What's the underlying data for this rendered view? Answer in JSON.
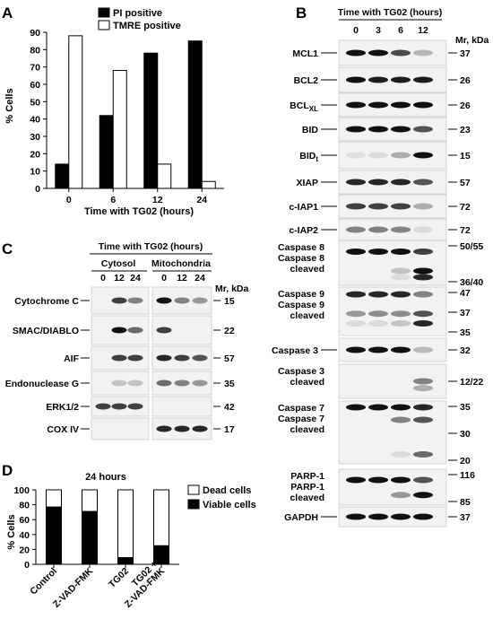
{
  "panels": {
    "A": "A",
    "B": "B",
    "C": "C",
    "D": "D"
  },
  "colors": {
    "black": "#000000",
    "white": "#ffffff",
    "blot_bg": "#f2f2f2",
    "band": "#111111"
  },
  "chart_data": [
    {
      "panel": "A",
      "type": "bar",
      "categories": [
        "0",
        "6",
        "12",
        "24"
      ],
      "series": [
        {
          "name": "PI positive",
          "values": [
            14,
            42,
            78,
            85
          ],
          "color": "#000000"
        },
        {
          "name": "TMRE positive",
          "values": [
            88,
            68,
            14,
            4
          ],
          "color": "#ffffff"
        }
      ],
      "xlabel": "Time with TG02 (hours)",
      "ylabel": "% Cells",
      "ylim": [
        0,
        90
      ],
      "yticks": [
        "0",
        "10",
        "20",
        "30",
        "40",
        "50",
        "60",
        "70",
        "80",
        "90"
      ],
      "legend": "top-left"
    },
    {
      "panel": "D",
      "type": "bar",
      "stacked": true,
      "title": "24 hours",
      "categories": [
        "Control",
        "Z-VAD-FMK",
        "TG02",
        "TG02 + Z-VAD-FMK"
      ],
      "series": [
        {
          "name": "Viable cells",
          "values": [
            77,
            71,
            9,
            25
          ],
          "color": "#000000"
        },
        {
          "name": "Dead cells",
          "values": [
            23,
            29,
            91,
            75
          ],
          "color": "#ffffff"
        }
      ],
      "ylabel": "% Cells",
      "ylim": [
        0,
        100
      ],
      "yticks": [
        "0",
        "20",
        "40",
        "60",
        "80",
        "100"
      ],
      "legend": "right"
    }
  ],
  "blot_b": {
    "header": "Time with TG02 (hours)",
    "lanes": [
      "0",
      "3",
      "6",
      "12"
    ],
    "mr_header": "Mr, kDa",
    "rows": [
      {
        "label": "MCL1",
        "mw": [
          "37"
        ]
      },
      {
        "label": "BCL2",
        "mw": [
          "26"
        ]
      },
      {
        "label": "BCL",
        "sub": "XL",
        "mw": [
          "26"
        ]
      },
      {
        "label": "BID",
        "mw": [
          "23"
        ]
      },
      {
        "label": "BID",
        "sub": "t",
        "mw": [
          "15"
        ]
      },
      {
        "label": "XIAP",
        "mw": [
          "57"
        ]
      },
      {
        "label": "c-IAP1",
        "mw": [
          "72"
        ]
      },
      {
        "label": "c-IAP2",
        "mw": [
          "72"
        ]
      },
      {
        "label": "Caspase 8",
        "label2": "Caspase 8",
        "label3": "cleaved",
        "mw": [
          "50/55",
          "36/40"
        ]
      },
      {
        "label": "Caspase 9",
        "label2": "Caspase 9",
        "label3": "cleaved",
        "mw": [
          "47",
          "37",
          "35"
        ]
      },
      {
        "label": "Caspase 3",
        "mw": [
          "32"
        ]
      },
      {
        "label": "Caspase 3",
        "label2": "cleaved",
        "mw": [
          "12/22"
        ]
      },
      {
        "label": "Caspase 7",
        "label2": "Caspase 7",
        "label3": "cleaved",
        "mw": [
          "35",
          "30",
          "20"
        ]
      },
      {
        "label": "PARP-1",
        "label2": "PARP-1",
        "label3": "cleaved",
        "mw": [
          "116",
          "85"
        ]
      },
      {
        "label": "GAPDH",
        "mw": [
          "37"
        ]
      }
    ]
  },
  "blot_c": {
    "header": "Time with TG02 (hours)",
    "groups": [
      "Cytosol",
      "Mitochondria"
    ],
    "lanes": [
      "0",
      "12",
      "24",
      "0",
      "12",
      "24"
    ],
    "mr_header": "Mr, kDa",
    "rows": [
      {
        "label": "Cytochrome C",
        "mw": "15"
      },
      {
        "label": "SMAC/DIABLO",
        "mw": "22"
      },
      {
        "label": "AIF",
        "mw": "57"
      },
      {
        "label": "Endonuclease G",
        "mw": "35"
      },
      {
        "label": "ERK1/2",
        "mw": "42"
      },
      {
        "label": "COX IV",
        "mw": "17"
      }
    ]
  }
}
